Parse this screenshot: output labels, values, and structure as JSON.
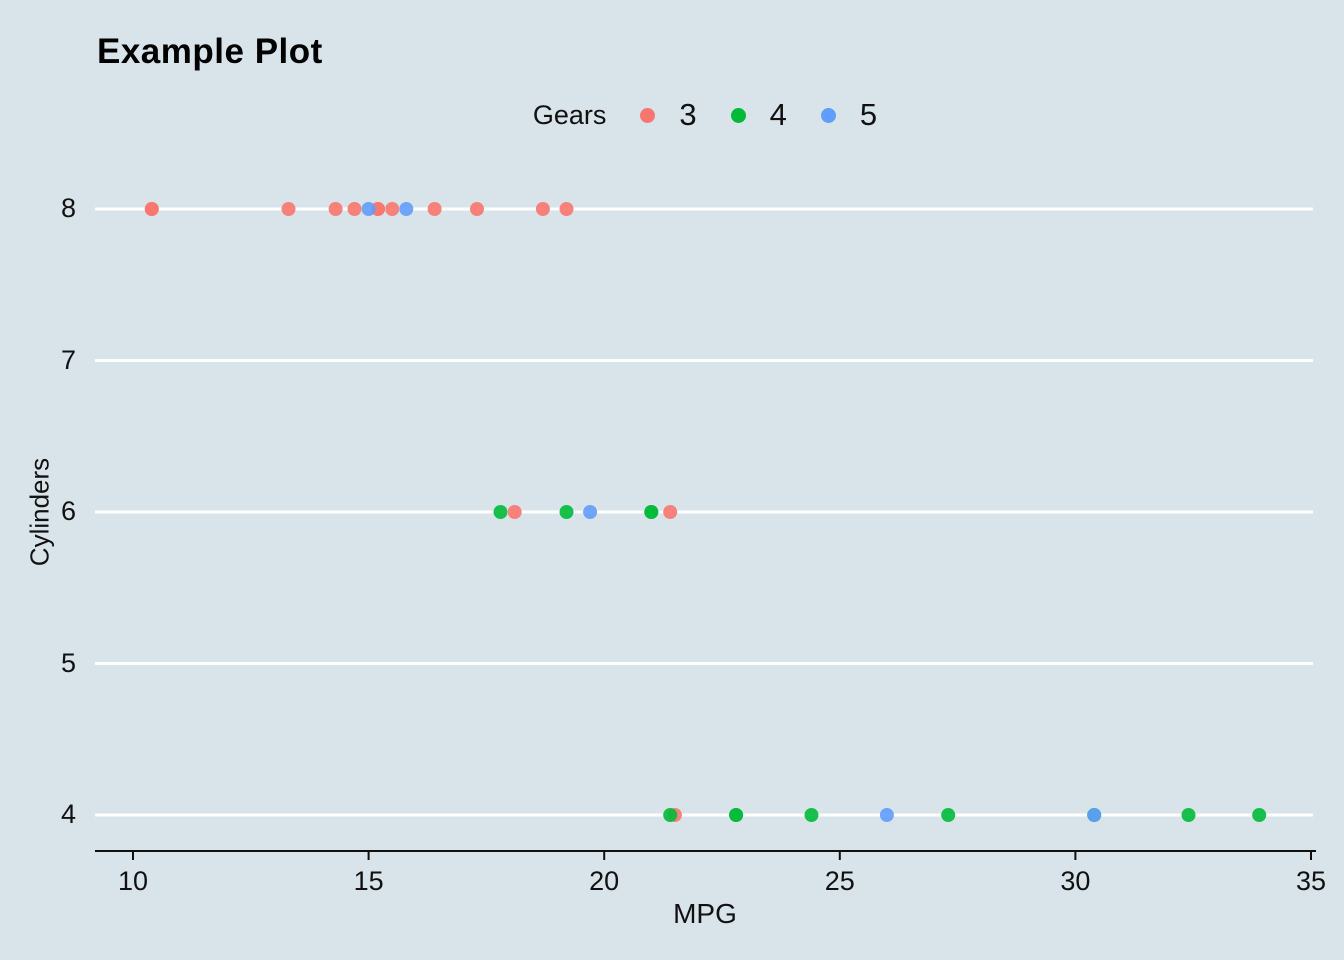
{
  "chart_data": {
    "type": "scatter",
    "title": "Example Plot",
    "xlabel": "MPG",
    "ylabel": "Cylinders",
    "legend_title": "Gears",
    "legend_position": "top-center",
    "grid": "horizontal-major-only",
    "panel_background": "#d8e4ea",
    "gridline_color": "#ffffff",
    "axis_line_color": "#101010",
    "xlim": [
      9.2,
      35.1
    ],
    "ylim": [
      3.75,
      8.4
    ],
    "x_ticks": [
      10,
      15,
      20,
      25,
      30,
      35
    ],
    "y_ticks": [
      4,
      5,
      6,
      7,
      8
    ],
    "series": [
      {
        "name": "3",
        "color": "#F8766D",
        "points": [
          [
            10.4,
            8
          ],
          [
            10.4,
            8
          ],
          [
            13.3,
            8
          ],
          [
            14.3,
            8
          ],
          [
            14.7,
            8
          ],
          [
            15.2,
            8
          ],
          [
            15.2,
            8
          ],
          [
            15.5,
            8
          ],
          [
            16.4,
            8
          ],
          [
            17.3,
            8
          ],
          [
            18.7,
            8
          ],
          [
            19.2,
            8
          ],
          [
            18.1,
            6
          ],
          [
            21.4,
            6
          ],
          [
            21.5,
            4
          ]
        ]
      },
      {
        "name": "4",
        "color": "#00BA38",
        "points": [
          [
            17.8,
            6
          ],
          [
            19.2,
            6
          ],
          [
            21.0,
            6
          ],
          [
            21.0,
            6
          ],
          [
            21.4,
            4
          ],
          [
            22.8,
            4
          ],
          [
            22.8,
            4
          ],
          [
            24.4,
            4
          ],
          [
            27.3,
            4
          ],
          [
            30.4,
            4
          ],
          [
            32.4,
            4
          ],
          [
            33.9,
            4
          ]
        ]
      },
      {
        "name": "5",
        "color": "#619CFF",
        "points": [
          [
            15.0,
            8
          ],
          [
            15.8,
            8
          ],
          [
            19.7,
            6
          ],
          [
            26.0,
            4
          ],
          [
            30.4,
            4
          ]
        ]
      }
    ]
  }
}
